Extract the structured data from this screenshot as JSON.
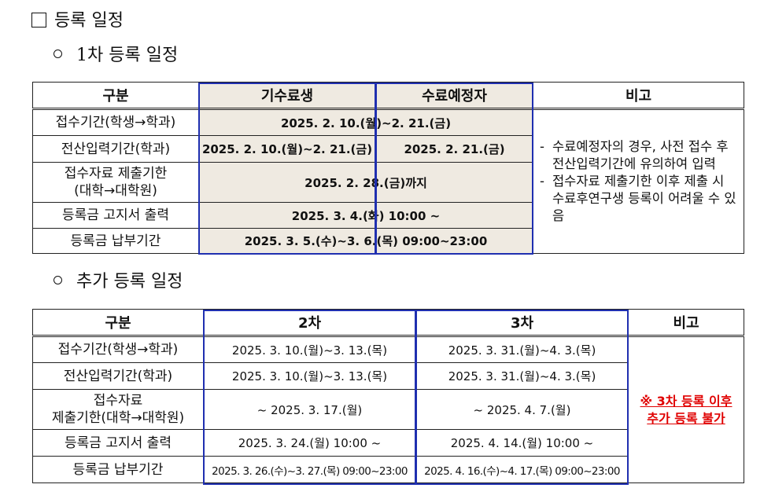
{
  "headings": {
    "main": "등록 일정",
    "first_round": "1차 등록 일정",
    "additional": "추가 등록 일정"
  },
  "table1": {
    "headers": [
      "구분",
      "기수료생",
      "수료예정자",
      "비고"
    ],
    "rows": [
      {
        "label": "접수기간(학생→학과)",
        "value": "2025. 2. 10.(월)~2. 21.(금)"
      },
      {
        "label": "전산입력기간(학과)",
        "value_completed": "2025. 2. 10.(월)~2. 21.(금)",
        "value_expected": "2025. 2. 21.(금)"
      },
      {
        "label": "접수자료 제출기한\n(대학→대학원)",
        "value": "2025. 2. 28.(금)까지"
      },
      {
        "label": "등록금 고지서 출력",
        "value": "2025. 3. 4.(화) 10:00 ~"
      },
      {
        "label": "등록금 납부기간",
        "value": "2025. 3. 5.(수)~3. 6.(목) 09:00~23:00"
      }
    ],
    "notes": [
      "수료예정자의 경우, 사전 접수 후 전산입력기간에 유의하여 입력",
      "접수자료 제출기한 이후 제출 시 수료후연구생 등록이 어려울 수 있음"
    ]
  },
  "table2": {
    "headers": [
      "구분",
      "2차",
      "3차",
      "비고"
    ],
    "rows": [
      {
        "label": "접수기간(학생→학과)",
        "round2": "2025. 3. 10.(월)~3. 13.(목)",
        "round3": "2025. 3. 31.(월)~4. 3.(목)"
      },
      {
        "label": "전산입력기간(학과)",
        "round2": "2025. 3. 10.(월)~3. 13.(목)",
        "round3": "2025. 3. 31.(월)~4. 3.(목)"
      },
      {
        "label": "접수자료\n제출기한(대학→대학원)",
        "round2": "~ 2025. 3. 17.(월)",
        "round3": "~ 2025. 4. 7.(월)"
      },
      {
        "label": "등록금 고지서 출력",
        "round2": "2025. 3. 24.(월) 10:00 ~",
        "round3": "2025. 4. 14.(월) 10:00 ~"
      },
      {
        "label": "등록금 납부기간",
        "round2": "2025. 3. 26.(수)~3. 27.(목) 09:00~23:00",
        "round3": "2025. 4. 16.(수)~4. 17.(목) 09:00~23:00"
      }
    ],
    "note_line1": "※ 3차 등록 이후",
    "note_line2": "추가 등록 불가"
  },
  "colors": {
    "header_fill": "#efeae1",
    "frame_blue": "#1f2fb0",
    "note_red": "#e00000"
  }
}
